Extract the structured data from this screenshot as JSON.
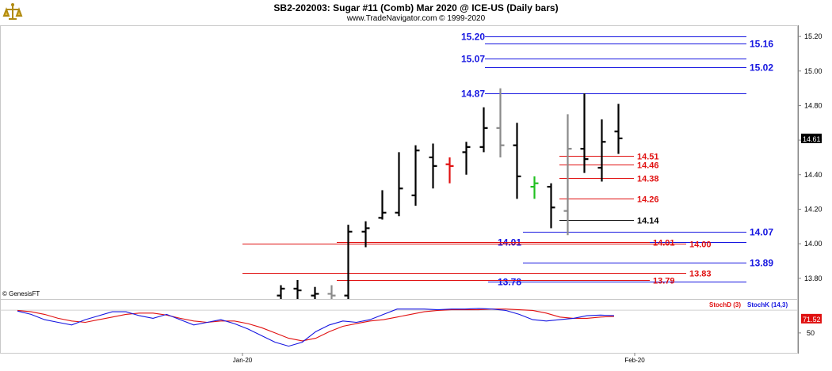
{
  "header": {
    "title": "SB2-202003:  Sugar #11 (Comb) Mar 2020 @ ICE-US  (Daily bars)",
    "subtitle": "www.TradeNavigator.com © 1999-2020"
  },
  "watermark": "© GenesisFT",
  "colors": {
    "blue_level": "#1515e0",
    "red_level": "#e01010",
    "black_level": "#000000",
    "stochD": "#e01010",
    "stochK": "#1515e0"
  },
  "chart_data": [
    {
      "type": "bar",
      "subtype": "ohlc",
      "ylim": [
        13.68,
        15.26
      ],
      "yticks": [
        "15.20",
        "15.00",
        "14.80",
        "14.60",
        "14.40",
        "14.20",
        "14.00",
        "13.80"
      ],
      "xticks": [
        "Jan-20",
        "Feb-20"
      ],
      "last_price": "14.61",
      "bars": [
        {
          "o": 13.7,
          "h": 13.76,
          "l": 13.66,
          "c": 13.74,
          "color": "black"
        },
        {
          "o": 13.74,
          "h": 13.79,
          "l": 13.68,
          "c": 13.73,
          "color": "black"
        },
        {
          "o": 13.7,
          "h": 13.75,
          "l": 13.66,
          "c": 13.71,
          "color": "black"
        },
        {
          "o": 13.71,
          "h": 13.76,
          "l": 13.66,
          "c": 13.7,
          "color": "gray"
        },
        {
          "o": 13.7,
          "h": 14.11,
          "l": 13.62,
          "c": 14.07,
          "color": "black"
        },
        {
          "o": 14.07,
          "h": 14.13,
          "l": 13.98,
          "c": 14.09,
          "color": "black"
        },
        {
          "o": 14.15,
          "h": 14.31,
          "l": 14.14,
          "c": 14.18,
          "color": "black"
        },
        {
          "o": 14.18,
          "h": 14.53,
          "l": 14.16,
          "c": 14.32,
          "color": "black"
        },
        {
          "o": 14.28,
          "h": 14.57,
          "l": 14.22,
          "c": 14.54,
          "color": "black"
        },
        {
          "o": 14.5,
          "h": 14.58,
          "l": 14.32,
          "c": 14.45,
          "color": "black"
        },
        {
          "o": 14.46,
          "h": 14.5,
          "l": 14.35,
          "c": 14.45,
          "color": "red"
        },
        {
          "o": 14.53,
          "h": 14.59,
          "l": 14.4,
          "c": 14.56,
          "color": "black"
        },
        {
          "o": 14.56,
          "h": 14.79,
          "l": 14.53,
          "c": 14.67,
          "color": "black"
        },
        {
          "o": 14.67,
          "h": 14.9,
          "l": 14.5,
          "c": 14.57,
          "color": "gray"
        },
        {
          "o": 14.57,
          "h": 14.7,
          "l": 14.26,
          "c": 14.39,
          "color": "black"
        },
        {
          "o": 14.33,
          "h": 14.39,
          "l": 14.26,
          "c": 14.35,
          "color": "green"
        },
        {
          "o": 14.33,
          "h": 14.35,
          "l": 14.09,
          "c": 14.21,
          "color": "black"
        },
        {
          "o": 14.19,
          "h": 14.75,
          "l": 14.05,
          "c": 14.55,
          "color": "gray"
        },
        {
          "o": 14.55,
          "h": 14.87,
          "l": 14.41,
          "c": 14.49,
          "color": "black"
        },
        {
          "o": 14.44,
          "h": 14.72,
          "l": 14.36,
          "c": 14.59,
          "color": "black"
        },
        {
          "o": 14.65,
          "h": 14.81,
          "l": 14.52,
          "c": 14.61,
          "color": "black"
        }
      ],
      "levels": [
        {
          "label": "15.20",
          "value": 15.2,
          "color": "blue",
          "side": "left"
        },
        {
          "label": "15.16",
          "value": 15.16,
          "color": "blue",
          "side": "right"
        },
        {
          "label": "15.07",
          "value": 15.07,
          "color": "blue",
          "side": "left"
        },
        {
          "label": "15.02",
          "value": 15.02,
          "color": "blue",
          "side": "right"
        },
        {
          "label": "14.87",
          "value": 14.87,
          "color": "blue",
          "side": "left"
        },
        {
          "label": "14.51",
          "value": 14.51,
          "color": "red",
          "side": "mid"
        },
        {
          "label": "14.46",
          "value": 14.46,
          "color": "red",
          "side": "mid"
        },
        {
          "label": "14.38",
          "value": 14.38,
          "color": "red",
          "side": "mid"
        },
        {
          "label": "14.26",
          "value": 14.26,
          "color": "red",
          "side": "mid"
        },
        {
          "label": "14.14",
          "value": 14.14,
          "color": "black",
          "side": "mid"
        },
        {
          "label": "14.07",
          "value": 14.07,
          "color": "blue",
          "side": "right"
        },
        {
          "label": "14.01",
          "value": 14.01,
          "color": "blue",
          "side": "left"
        },
        {
          "label": "14.01",
          "value": 14.01,
          "color": "red",
          "side": "mid"
        },
        {
          "label": "14.00",
          "value": 14.0,
          "color": "red",
          "side": "mid"
        },
        {
          "label": "13.89",
          "value": 13.89,
          "color": "blue",
          "side": "right"
        },
        {
          "label": "13.83",
          "value": 13.83,
          "color": "red",
          "side": "mid"
        },
        {
          "label": "13.78",
          "value": 13.78,
          "color": "blue",
          "side": "left"
        },
        {
          "label": "13.79",
          "value": 13.79,
          "color": "red",
          "side": "mid"
        }
      ]
    },
    {
      "type": "line",
      "ylim": [
        20,
        100
      ],
      "yticks": [
        "50"
      ],
      "legend": [
        "StochD (3)",
        "StochK (14,3)"
      ],
      "last_value": "71.52",
      "series": [
        {
          "name": "StochD (3)",
          "color": "red",
          "values": [
            84,
            82,
            78,
            72,
            68,
            66,
            70,
            74,
            78,
            80,
            80,
            77,
            72,
            68,
            66,
            68,
            68,
            64,
            58,
            50,
            42,
            38,
            42,
            52,
            60,
            64,
            68,
            70,
            74,
            78,
            82,
            84,
            85,
            85,
            85,
            86,
            86,
            85,
            84,
            80,
            74,
            72,
            72,
            74,
            75
          ]
        },
        {
          "name": "StochK (14,3)",
          "color": "blue",
          "values": [
            83,
            78,
            70,
            66,
            62,
            70,
            76,
            82,
            82,
            76,
            72,
            78,
            70,
            62,
            66,
            70,
            64,
            56,
            46,
            36,
            30,
            36,
            52,
            62,
            68,
            66,
            70,
            78,
            86,
            86,
            86,
            85,
            86,
            86,
            87,
            86,
            84,
            78,
            70,
            68,
            70,
            72,
            76,
            77,
            76
          ]
        }
      ]
    }
  ]
}
